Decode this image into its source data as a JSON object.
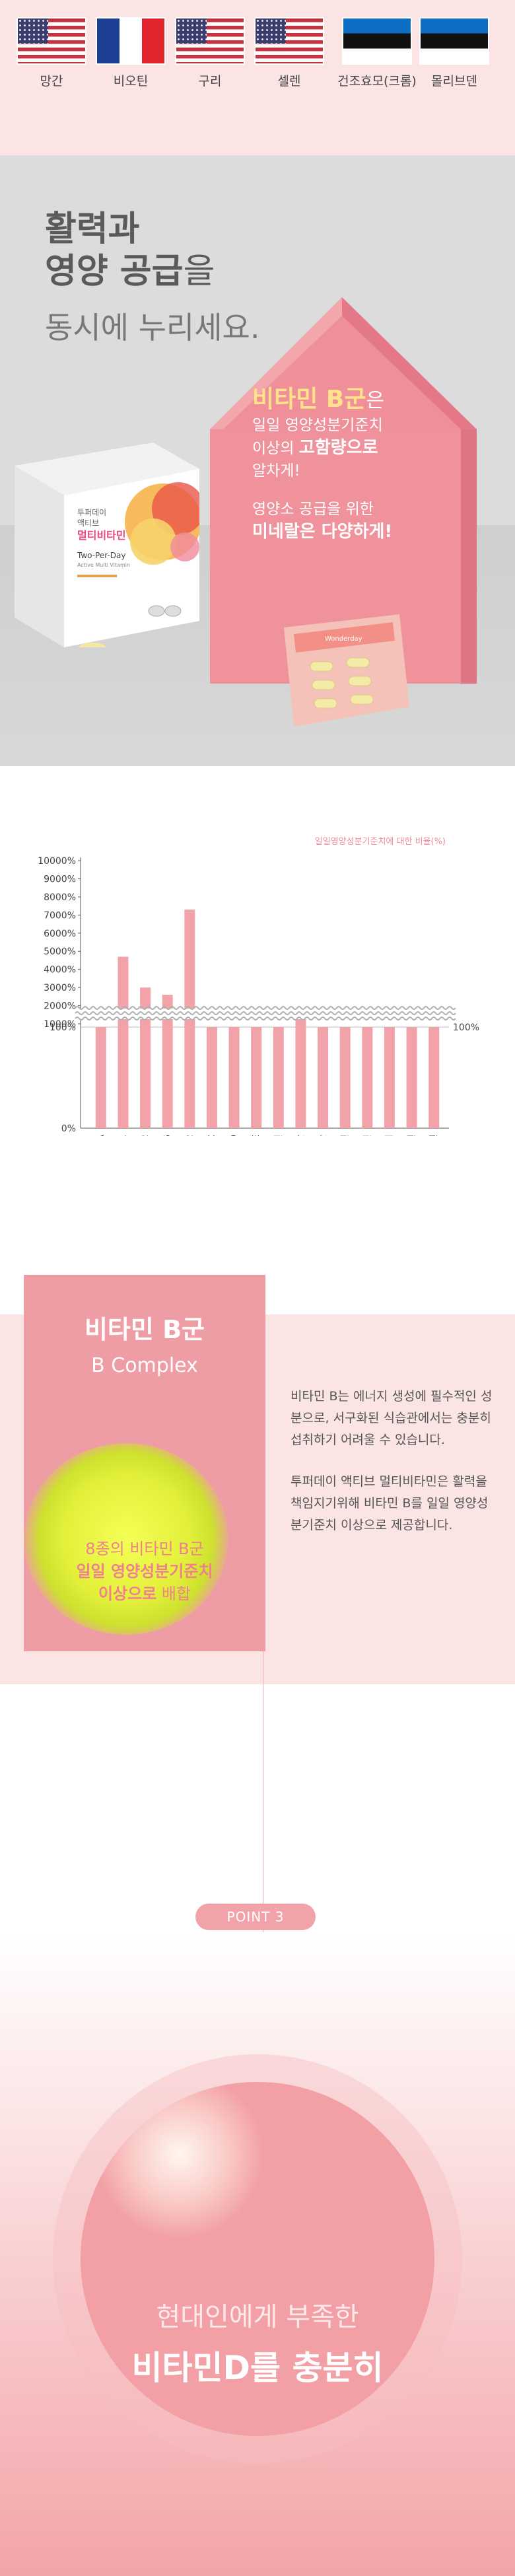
{
  "flags": [
    {
      "label": "망간",
      "flag": "usa"
    },
    {
      "label": "비오틴",
      "flag": "france"
    },
    {
      "label": "구리",
      "flag": "usa"
    },
    {
      "label": "셀렌",
      "flag": "usa"
    },
    {
      "label": "건조효모(크롬)",
      "flag": "estonia"
    },
    {
      "label": "몰리브덴",
      "flag": "estonia"
    }
  ],
  "hero": {
    "title_line1": "활력과",
    "title_line2_bold": "영양 공급",
    "title_line2_light": "을",
    "subtitle": "동시에 누리세요.",
    "house_line1_bold": "비타민 B군",
    "house_line1_rest": "은",
    "house_line2": "일일 영양성분기준치",
    "house_line3_a": "이상의 ",
    "house_line3_bold": "고함량으로",
    "house_line4": "알차게!",
    "house_line5": "영양소 공급을 위한",
    "house_line6_bold": "미네랄은 다양하게!",
    "product_brand": "투퍼데이",
    "product_name_a": "액티브",
    "product_name_b": "멀티비타민",
    "product_sub": "Two-Per-Day",
    "product_sub2": "Active Multi Vitamin",
    "blister_label": "Wonderday"
  },
  "chart_data": {
    "type": "bar",
    "legend_note": "일일영양성분기준치에 대한 비율(%)",
    "y_ticks_upper": [
      "10000%",
      "9000%",
      "8000%",
      "7000%",
      "6000%",
      "5000%",
      "4000%",
      "3000%",
      "2000%",
      "1000%"
    ],
    "y_ticks_lower": [
      "100%",
      "0%"
    ],
    "right_label": "100%",
    "categories": [
      "비타민A",
      "비타민B1",
      "비타민B2",
      "비타민B6",
      "비타민B12",
      "비타민C",
      "비타민D",
      "비타민E",
      "나이아신",
      "판토텐산",
      "엽산",
      "아연",
      "비오틴",
      "구리",
      "셀렌",
      "몰리브덴"
    ],
    "values": [
      100,
      4700,
      3000,
      2600,
      7300,
      100,
      150,
      100,
      160,
      1600,
      100,
      100,
      110,
      100,
      120,
      100
    ],
    "color": "#f2a3aa"
  },
  "bcomplex": {
    "title": "비타민 B군",
    "subtitle": "B Complex",
    "circle_line1": "8종의 비타민 B군",
    "circle_line2_bold": "일일 영양성분기준치",
    "circle_line3_bold": "이상으로",
    "circle_line3_rest": " 배합",
    "para1": "비타민 B는 에너지 생성에 필수적인 성분으로, 서구화된 식습관에서는 충분히 섭취하기 어려울 수 있습니다.",
    "para2": "투퍼데이 액티브 멀티비타민은 활력을 책임지기위해 비타민 B를 일일 영양성분기준치 이상으로 제공합니다."
  },
  "point": {
    "label": "POINT 3"
  },
  "vitamin_d": {
    "line1": "현대인에게 부족한",
    "line2": "비타민D를 충분히"
  },
  "colors": {
    "accent": "#f2a3aa",
    "bg_pink": "#fbe4e4",
    "grey": "#dcdcdc"
  }
}
